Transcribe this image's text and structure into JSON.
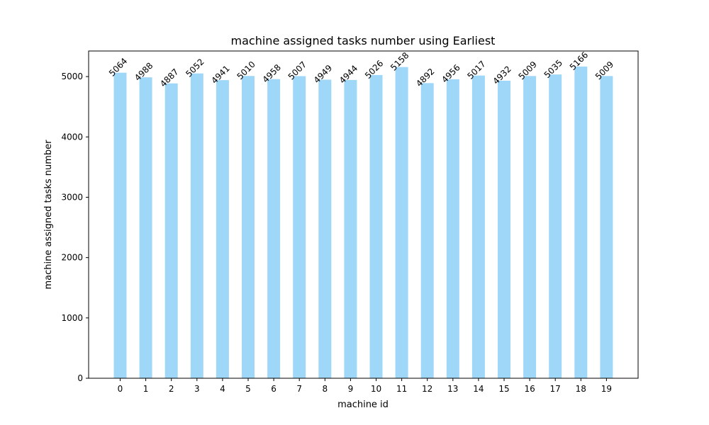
{
  "chart_data": {
    "type": "bar",
    "title": "machine assigned tasks number using Earliest",
    "xlabel": "machine id",
    "ylabel": "machine assigned tasks number",
    "categories": [
      "0",
      "1",
      "2",
      "3",
      "4",
      "5",
      "6",
      "7",
      "8",
      "9",
      "10",
      "11",
      "12",
      "13",
      "14",
      "15",
      "16",
      "17",
      "18",
      "19"
    ],
    "values": [
      5064,
      4988,
      4887,
      5052,
      4941,
      5010,
      4958,
      5007,
      4949,
      4944,
      5026,
      5158,
      4892,
      4956,
      5017,
      4932,
      5009,
      5035,
      5166,
      5009
    ],
    "data_labels": [
      "5064",
      "4988",
      "4887",
      "5052",
      "4941",
      "5010",
      "4958",
      "5007",
      "4949",
      "4944",
      "5026",
      "5158",
      "4892",
      "4956",
      "5017",
      "4932",
      "5009",
      "5035",
      "5166",
      "5009"
    ],
    "yticks": [
      0,
      1000,
      2000,
      3000,
      4000,
      5000
    ],
    "ytick_labels": [
      "0",
      "1000",
      "2000",
      "3000",
      "4000",
      "5000"
    ],
    "ylim": [
      0,
      5424
    ],
    "bar_color": "#9fd7f9",
    "grid": false,
    "legend": "none"
  }
}
